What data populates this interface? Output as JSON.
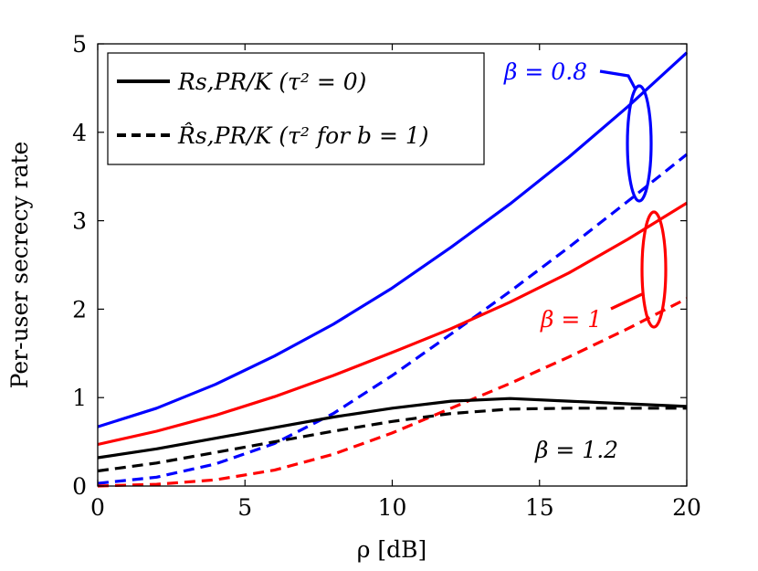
{
  "chart_data": {
    "type": "line",
    "title": "",
    "xlabel": "ρ [dB]",
    "ylabel": "Per-user secrecy rate",
    "xlim": [
      0,
      20
    ],
    "ylim": [
      0,
      5
    ],
    "xticks": [
      0,
      5,
      10,
      15,
      20
    ],
    "yticks": [
      0,
      1,
      2,
      3,
      4,
      5
    ],
    "grid": false,
    "legend_position": "top-left",
    "legend": [
      {
        "label": "R_{s,PR}/K  (τ² = 0)",
        "text": "Rs,PR/K  (τ² = 0)",
        "style": "solid"
      },
      {
        "label": "R̂_{s,PR}/K  (τ² for b = 1)",
        "text": "R̂s,PR/K  (τ² for b = 1)",
        "style": "dashed"
      }
    ],
    "annotations": [
      {
        "text": "β = 0.8",
        "color": "#0000ff"
      },
      {
        "text": "β = 1",
        "color": "#ff0000"
      },
      {
        "text": "β = 1.2",
        "color": "#000000"
      }
    ],
    "x": [
      0,
      2,
      4,
      6,
      8,
      10,
      12,
      14,
      16,
      18,
      20
    ],
    "series": [
      {
        "beta": "0.8",
        "style": "solid",
        "color": "#0000ff",
        "values": [
          0.67,
          0.88,
          1.15,
          1.47,
          1.83,
          2.24,
          2.7,
          3.19,
          3.72,
          4.29,
          4.9
        ]
      },
      {
        "beta": "0.8",
        "style": "dashed",
        "color": "#0000ff",
        "values": [
          0.03,
          0.1,
          0.25,
          0.48,
          0.82,
          1.25,
          1.72,
          2.2,
          2.7,
          3.22,
          3.75
        ]
      },
      {
        "beta": "1",
        "style": "solid",
        "color": "#ff0000",
        "values": [
          0.47,
          0.62,
          0.8,
          1.01,
          1.25,
          1.51,
          1.78,
          2.08,
          2.41,
          2.79,
          3.2
        ]
      },
      {
        "beta": "1",
        "style": "dashed",
        "color": "#ff0000",
        "values": [
          0.0,
          0.02,
          0.07,
          0.18,
          0.36,
          0.6,
          0.88,
          1.16,
          1.46,
          1.78,
          2.12
        ]
      },
      {
        "beta": "1.2",
        "style": "solid",
        "color": "#000000",
        "values": [
          0.32,
          0.42,
          0.54,
          0.66,
          0.78,
          0.88,
          0.96,
          0.99,
          0.96,
          0.93,
          0.9
        ]
      },
      {
        "beta": "1.2",
        "style": "dashed",
        "color": "#000000",
        "values": [
          0.17,
          0.26,
          0.38,
          0.5,
          0.62,
          0.73,
          0.82,
          0.87,
          0.88,
          0.88,
          0.88
        ]
      }
    ]
  }
}
